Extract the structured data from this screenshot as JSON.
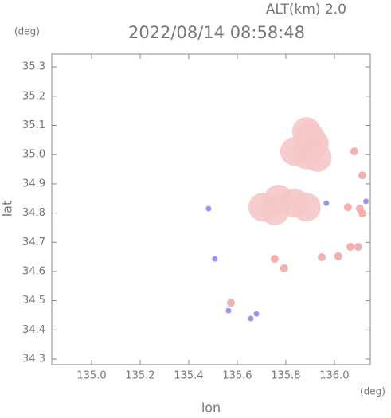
{
  "chart_data": {
    "type": "scatter",
    "title": "2022/08/14 08:58:48",
    "subtitle": "ALT(km) 2.0",
    "x_label": "lon",
    "y_label": "lat",
    "x_unit": "(deg)",
    "y_unit": "(deg)",
    "xlim": [
      134.836,
      136.148
    ],
    "ylim": [
      34.281,
      35.344
    ],
    "xticks": [
      {
        "value": 135.0,
        "label": "135.0"
      },
      135.2,
      135.4,
      135.6,
      135.8,
      {
        "value": 136.0,
        "label": "136.0"
      }
    ],
    "yticks": [
      34.3,
      34.4,
      34.5,
      34.6,
      34.7,
      34.8,
      34.9,
      {
        "value": 35.0,
        "label": "35.0"
      },
      35.1,
      35.2,
      35.3
    ],
    "series": [
      {
        "color": "#f5c6c6",
        "x": [
          135.885,
          135.918,
          135.885,
          135.836,
          135.705,
          135.77,
          135.836,
          135.885,
          135.754,
          135.9,
          135.93
        ],
        "values": [
          35.079,
          35.038,
          34.999,
          35.011,
          34.82,
          34.848,
          34.834,
          34.82,
          34.807,
          35.06,
          34.99
        ]
      },
      {
        "color": "#f2a8a8",
        "x": [
          136.056,
          136.105,
          136.115,
          136.082,
          136.115,
          136.066,
          136.098,
          136.016,
          135.754,
          135.793,
          135.574,
          135.948
        ],
        "values": [
          34.82,
          34.815,
          34.929,
          35.011,
          34.799,
          34.684,
          34.684,
          34.652,
          34.643,
          34.611,
          34.493,
          34.649
        ]
      },
      {
        "color": "#8c8cf0",
        "x": [
          135.967,
          135.508,
          135.564,
          135.679,
          135.656,
          135.482,
          136.13
        ],
        "values": [
          34.834,
          34.643,
          34.466,
          34.455,
          34.439,
          34.815,
          34.84
        ]
      }
    ]
  }
}
